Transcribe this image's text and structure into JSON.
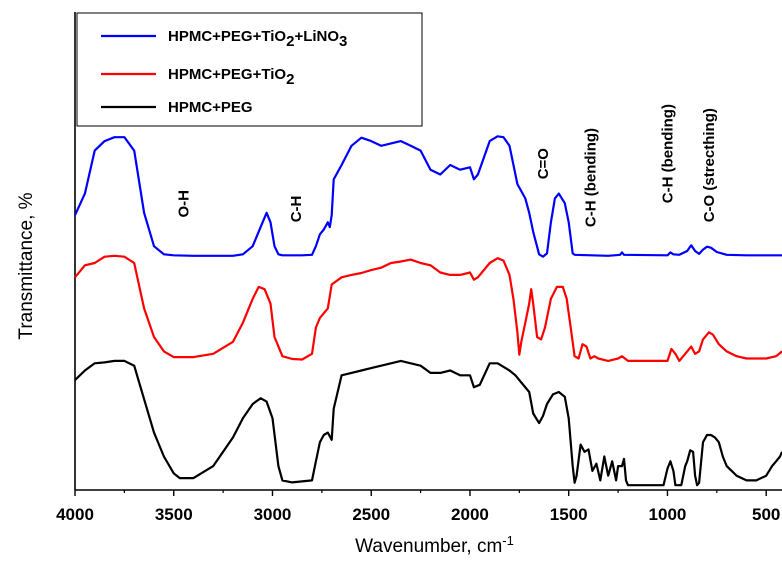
{
  "chart_data": {
    "type": "line",
    "xlabel": "Wavenumber, cm",
    "xlabel_sup": "-1",
    "ylabel": "Transmittance, %",
    "xlim": [
      4000,
      420
    ],
    "x_reversed": true,
    "x_ticks": [
      4000,
      3500,
      3000,
      2500,
      2000,
      1500,
      1000,
      500
    ],
    "y_ticks_shown": false,
    "grid": false,
    "legend_position": "top-left",
    "series": [
      {
        "name": "HPMC+PEG+TiO2+LiNO3",
        "legend_parts": [
          {
            "t": "HPMC+PEG+TiO",
            "sub": false
          },
          {
            "t": "2",
            "sub": true
          },
          {
            "t": "+LiNO",
            "sub": false
          },
          {
            "t": "3",
            "sub": true
          }
        ],
        "color": "#0000ff",
        "points": [
          [
            4000,
            57.5
          ],
          [
            3950,
            62
          ],
          [
            3900,
            71
          ],
          [
            3850,
            73
          ],
          [
            3800,
            73.8
          ],
          [
            3750,
            73.8
          ],
          [
            3700,
            71
          ],
          [
            3650,
            58
          ],
          [
            3600,
            51
          ],
          [
            3550,
            49.3
          ],
          [
            3500,
            49.1
          ],
          [
            3400,
            49
          ],
          [
            3300,
            49
          ],
          [
            3200,
            49
          ],
          [
            3150,
            49.3
          ],
          [
            3100,
            51
          ],
          [
            3050,
            56
          ],
          [
            3030,
            58
          ],
          [
            3010,
            56
          ],
          [
            2990,
            51
          ],
          [
            2970,
            49.3
          ],
          [
            2950,
            49.1
          ],
          [
            2850,
            49.1
          ],
          [
            2800,
            49.2
          ],
          [
            2780,
            51
          ],
          [
            2760,
            53.5
          ],
          [
            2740,
            54.5
          ],
          [
            2720,
            56
          ],
          [
            2710,
            55
          ],
          [
            2700,
            57.5
          ],
          [
            2690,
            65
          ],
          [
            2650,
            68
          ],
          [
            2600,
            72
          ],
          [
            2550,
            73.7
          ],
          [
            2500,
            73
          ],
          [
            2450,
            72
          ],
          [
            2400,
            72.5
          ],
          [
            2350,
            73
          ],
          [
            2300,
            72
          ],
          [
            2250,
            71
          ],
          [
            2200,
            67
          ],
          [
            2150,
            66
          ],
          [
            2100,
            68
          ],
          [
            2050,
            67
          ],
          [
            2000,
            67.5
          ],
          [
            1980,
            65
          ],
          [
            1960,
            66
          ],
          [
            1900,
            73
          ],
          [
            1860,
            74
          ],
          [
            1830,
            73.8
          ],
          [
            1800,
            72
          ],
          [
            1760,
            64
          ],
          [
            1720,
            61
          ],
          [
            1700,
            58
          ],
          [
            1680,
            54
          ],
          [
            1650,
            49.3
          ],
          [
            1630,
            48.8
          ],
          [
            1610,
            49.5
          ],
          [
            1590,
            56
          ],
          [
            1570,
            61
          ],
          [
            1550,
            62
          ],
          [
            1520,
            60
          ],
          [
            1500,
            56
          ],
          [
            1480,
            49.5
          ],
          [
            1470,
            49.2
          ],
          [
            1300,
            49
          ],
          [
            1240,
            49.2
          ],
          [
            1230,
            49.7
          ],
          [
            1220,
            49.2
          ],
          [
            1000,
            49.1
          ],
          [
            985,
            49.7
          ],
          [
            970,
            49.3
          ],
          [
            940,
            49.2
          ],
          [
            900,
            50
          ],
          [
            880,
            51.2
          ],
          [
            860,
            50
          ],
          [
            840,
            49.4
          ],
          [
            820,
            50.3
          ],
          [
            800,
            50.9
          ],
          [
            780,
            50.7
          ],
          [
            750,
            49.8
          ],
          [
            700,
            49.2
          ],
          [
            600,
            49.1
          ],
          [
            500,
            49.1
          ],
          [
            420,
            49.1
          ]
        ]
      },
      {
        "name": "HPMC+PEG+TiO2",
        "legend_parts": [
          {
            "t": "HPMC+PEG+TiO",
            "sub": false
          },
          {
            "t": "2",
            "sub": true
          }
        ],
        "color": "#ff0000",
        "points": [
          [
            4000,
            44.5
          ],
          [
            3950,
            47
          ],
          [
            3900,
            47.5
          ],
          [
            3850,
            48.8
          ],
          [
            3800,
            49
          ],
          [
            3750,
            48.8
          ],
          [
            3700,
            47.5
          ],
          [
            3650,
            38
          ],
          [
            3600,
            32
          ],
          [
            3550,
            29
          ],
          [
            3500,
            27.8
          ],
          [
            3400,
            27.8
          ],
          [
            3300,
            28.5
          ],
          [
            3200,
            31
          ],
          [
            3150,
            35
          ],
          [
            3100,
            40
          ],
          [
            3070,
            42.5
          ],
          [
            3040,
            42
          ],
          [
            3010,
            39
          ],
          [
            2990,
            32
          ],
          [
            2950,
            28
          ],
          [
            2900,
            27.4
          ],
          [
            2850,
            27.3
          ],
          [
            2800,
            28.5
          ],
          [
            2780,
            34
          ],
          [
            2760,
            36
          ],
          [
            2720,
            38
          ],
          [
            2700,
            43
          ],
          [
            2650,
            44.5
          ],
          [
            2600,
            45
          ],
          [
            2550,
            45.4
          ],
          [
            2500,
            46
          ],
          [
            2450,
            46.5
          ],
          [
            2400,
            47.5
          ],
          [
            2350,
            47.8
          ],
          [
            2300,
            48.2
          ],
          [
            2250,
            47.5
          ],
          [
            2200,
            47
          ],
          [
            2150,
            45.5
          ],
          [
            2100,
            45
          ],
          [
            2050,
            45
          ],
          [
            2000,
            45.5
          ],
          [
            1980,
            44
          ],
          [
            1960,
            44.5
          ],
          [
            1900,
            47.5
          ],
          [
            1860,
            48.5
          ],
          [
            1830,
            48
          ],
          [
            1800,
            45
          ],
          [
            1780,
            40
          ],
          [
            1760,
            33
          ],
          [
            1750,
            28.3
          ],
          [
            1740,
            31
          ],
          [
            1720,
            35
          ],
          [
            1700,
            39
          ],
          [
            1690,
            42
          ],
          [
            1680,
            39
          ],
          [
            1660,
            32
          ],
          [
            1640,
            31.5
          ],
          [
            1620,
            34
          ],
          [
            1590,
            40
          ],
          [
            1560,
            42.5
          ],
          [
            1530,
            42.5
          ],
          [
            1510,
            40
          ],
          [
            1490,
            34
          ],
          [
            1470,
            28
          ],
          [
            1450,
            27.5
          ],
          [
            1430,
            30.5
          ],
          [
            1410,
            30
          ],
          [
            1390,
            27.5
          ],
          [
            1370,
            28
          ],
          [
            1350,
            27.5
          ],
          [
            1300,
            27
          ],
          [
            1250,
            27.5
          ],
          [
            1230,
            28
          ],
          [
            1200,
            27
          ],
          [
            1000,
            27
          ],
          [
            980,
            29.5
          ],
          [
            960,
            28.5
          ],
          [
            940,
            27
          ],
          [
            900,
            29
          ],
          [
            880,
            30
          ],
          [
            860,
            28.5
          ],
          [
            840,
            29
          ],
          [
            820,
            31.5
          ],
          [
            790,
            33
          ],
          [
            770,
            32.5
          ],
          [
            740,
            30.5
          ],
          [
            700,
            29
          ],
          [
            650,
            28
          ],
          [
            600,
            27.5
          ],
          [
            500,
            27.5
          ],
          [
            450,
            28
          ],
          [
            420,
            29
          ]
        ]
      },
      {
        "name": "HPMC+PEG",
        "legend_parts": [
          {
            "t": "HPMC+PEG",
            "sub": false
          }
        ],
        "color": "#000000",
        "points": [
          [
            4000,
            23
          ],
          [
            3950,
            25
          ],
          [
            3900,
            26.5
          ],
          [
            3850,
            26.7
          ],
          [
            3800,
            27
          ],
          [
            3750,
            27
          ],
          [
            3700,
            26
          ],
          [
            3650,
            19
          ],
          [
            3600,
            12
          ],
          [
            3550,
            7
          ],
          [
            3500,
            3.5
          ],
          [
            3470,
            2.5
          ],
          [
            3400,
            2.5
          ],
          [
            3300,
            5
          ],
          [
            3200,
            11
          ],
          [
            3150,
            15
          ],
          [
            3100,
            18
          ],
          [
            3060,
            19.2
          ],
          [
            3030,
            18.5
          ],
          [
            3000,
            15
          ],
          [
            2970,
            5
          ],
          [
            2950,
            2
          ],
          [
            2900,
            1.6
          ],
          [
            2850,
            1.8
          ],
          [
            2800,
            2
          ],
          [
            2780,
            6
          ],
          [
            2760,
            10
          ],
          [
            2740,
            11.5
          ],
          [
            2720,
            12
          ],
          [
            2700,
            10.5
          ],
          [
            2690,
            17
          ],
          [
            2650,
            24
          ],
          [
            2600,
            24.5
          ],
          [
            2550,
            25
          ],
          [
            2500,
            25.5
          ],
          [
            2450,
            26
          ],
          [
            2400,
            26.5
          ],
          [
            2350,
            27
          ],
          [
            2300,
            26.5
          ],
          [
            2250,
            26
          ],
          [
            2200,
            24.5
          ],
          [
            2150,
            24.5
          ],
          [
            2100,
            25
          ],
          [
            2050,
            24
          ],
          [
            2000,
            24
          ],
          [
            1980,
            21.5
          ],
          [
            1950,
            22
          ],
          [
            1900,
            26.5
          ],
          [
            1860,
            26.5
          ],
          [
            1820,
            25.5
          ],
          [
            1800,
            25
          ],
          [
            1770,
            24
          ],
          [
            1750,
            23
          ],
          [
            1700,
            20.5
          ],
          [
            1680,
            16
          ],
          [
            1650,
            14
          ],
          [
            1630,
            15.5
          ],
          [
            1610,
            18
          ],
          [
            1580,
            20
          ],
          [
            1550,
            20.5
          ],
          [
            1520,
            19.5
          ],
          [
            1500,
            15
          ],
          [
            1480,
            5
          ],
          [
            1470,
            1.5
          ],
          [
            1460,
            3
          ],
          [
            1440,
            9.5
          ],
          [
            1420,
            8
          ],
          [
            1400,
            8.5
          ],
          [
            1380,
            4
          ],
          [
            1360,
            5.5
          ],
          [
            1340,
            2
          ],
          [
            1320,
            7
          ],
          [
            1300,
            3
          ],
          [
            1280,
            6
          ],
          [
            1260,
            2
          ],
          [
            1250,
            5
          ],
          [
            1230,
            5
          ],
          [
            1220,
            6.5
          ],
          [
            1210,
            2
          ],
          [
            1200,
            1
          ],
          [
            1100,
            1
          ],
          [
            1020,
            1
          ],
          [
            1000,
            4.5
          ],
          [
            985,
            6
          ],
          [
            970,
            4
          ],
          [
            960,
            1
          ],
          [
            930,
            1
          ],
          [
            910,
            5
          ],
          [
            900,
            6
          ],
          [
            885,
            8.3
          ],
          [
            870,
            8
          ],
          [
            860,
            3
          ],
          [
            850,
            1
          ],
          [
            840,
            1.5
          ],
          [
            820,
            10
          ],
          [
            800,
            11.5
          ],
          [
            780,
            11.5
          ],
          [
            760,
            11
          ],
          [
            740,
            10
          ],
          [
            720,
            7
          ],
          [
            700,
            5
          ],
          [
            650,
            3
          ],
          [
            600,
            2
          ],
          [
            550,
            2
          ],
          [
            500,
            3
          ],
          [
            470,
            5
          ],
          [
            450,
            6
          ],
          [
            430,
            7
          ],
          [
            420,
            8
          ]
        ]
      }
    ],
    "annotations": [
      {
        "text": "O-H",
        "x": 3450,
        "y": 57
      },
      {
        "text": "C-H",
        "x": 2880,
        "y": 56
      },
      {
        "text": "C=O",
        "x": 1630,
        "y": 65
      },
      {
        "text": "C-H (bending)",
        "x": 1390,
        "y": 55
      },
      {
        "text": "C-H (bending)",
        "x": 1000,
        "y": 60
      },
      {
        "text": "C-O (strecthing)",
        "x": 790,
        "y": 56
      }
    ]
  }
}
